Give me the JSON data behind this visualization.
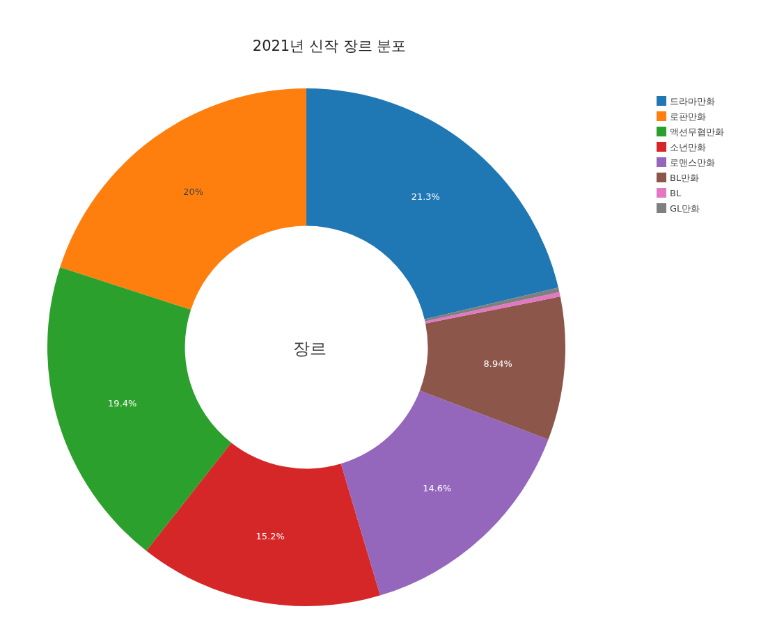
{
  "chart_data": {
    "type": "donut",
    "title": "2021년 신작 장르 분포",
    "annotations": [
      "장르"
    ],
    "categories": [
      "드라마만화",
      "로판만화",
      "액션무협만화",
      "소년만화",
      "로맨스만화",
      "BL만화",
      "BL",
      "GL만화"
    ],
    "values": [
      21.3,
      20,
      19.4,
      15.2,
      14.6,
      8.94,
      0.28,
      0.28
    ],
    "value_labels": [
      "21.3%",
      "20%",
      "19.4%",
      "15.2%",
      "14.6%",
      "8.94%",
      null,
      null
    ],
    "colors": [
      "#1f77b4",
      "#ff7f0e",
      "#2ca02c",
      "#d62728",
      "#9467bd",
      "#8c564b",
      "#e377c2",
      "#7f7f7f"
    ],
    "legend": "top right"
  }
}
